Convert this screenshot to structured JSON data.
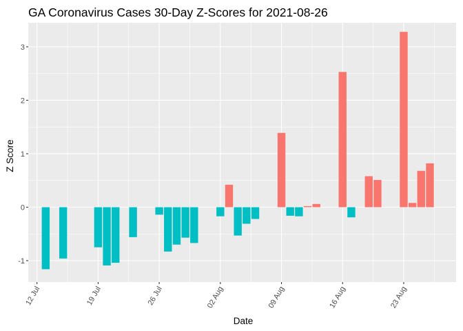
{
  "chart_data": {
    "type": "bar",
    "title": "GA Coronavirus Cases 30-Day Z-Scores for 2021-08-26",
    "xlabel": "Date",
    "ylabel": "Z Score",
    "x_ticks": [
      {
        "date": "2021-07-12",
        "label": "12 Jul"
      },
      {
        "date": "2021-07-19",
        "label": "19 Jul"
      },
      {
        "date": "2021-07-26",
        "label": "26 Jul"
      },
      {
        "date": "2021-08-02",
        "label": "02 Aug"
      },
      {
        "date": "2021-08-09",
        "label": "09 Aug"
      },
      {
        "date": "2021-08-16",
        "label": "16 Aug"
      },
      {
        "date": "2021-08-23",
        "label": "23 Aug"
      }
    ],
    "y_ticks": [
      -1,
      0,
      1,
      2,
      3
    ],
    "xlim": [
      "2021-07-11",
      "2021-08-29"
    ],
    "ylim": [
      -1.4,
      3.45
    ],
    "grid": true,
    "colors": {
      "positive": "#F8766D",
      "negative": "#00BFC4",
      "panel": "#EBEBEB",
      "grid": "#FFFFFF"
    },
    "bars": [
      {
        "date": "2021-07-13",
        "value": -1.16
      },
      {
        "date": "2021-07-15",
        "value": -0.96
      },
      {
        "date": "2021-07-19",
        "value": -0.75
      },
      {
        "date": "2021-07-20",
        "value": -1.09
      },
      {
        "date": "2021-07-21",
        "value": -1.04
      },
      {
        "date": "2021-07-23",
        "value": -0.56
      },
      {
        "date": "2021-07-26",
        "value": -0.14
      },
      {
        "date": "2021-07-27",
        "value": -0.83
      },
      {
        "date": "2021-07-28",
        "value": -0.7
      },
      {
        "date": "2021-07-29",
        "value": -0.57
      },
      {
        "date": "2021-07-30",
        "value": -0.67
      },
      {
        "date": "2021-08-02",
        "value": -0.17
      },
      {
        "date": "2021-08-03",
        "value": 0.42
      },
      {
        "date": "2021-08-04",
        "value": -0.53
      },
      {
        "date": "2021-08-05",
        "value": -0.31
      },
      {
        "date": "2021-08-06",
        "value": -0.22
      },
      {
        "date": "2021-08-09",
        "value": 1.39
      },
      {
        "date": "2021-08-10",
        "value": -0.16
      },
      {
        "date": "2021-08-11",
        "value": -0.17
      },
      {
        "date": "2021-08-12",
        "value": 0.02
      },
      {
        "date": "2021-08-13",
        "value": 0.06
      },
      {
        "date": "2021-08-16",
        "value": 2.53
      },
      {
        "date": "2021-08-17",
        "value": -0.19
      },
      {
        "date": "2021-08-19",
        "value": 0.58
      },
      {
        "date": "2021-08-20",
        "value": 0.51
      },
      {
        "date": "2021-08-23",
        "value": 3.28
      },
      {
        "date": "2021-08-24",
        "value": 0.08
      },
      {
        "date": "2021-08-25",
        "value": 0.68
      },
      {
        "date": "2021-08-26",
        "value": 0.82
      }
    ]
  }
}
